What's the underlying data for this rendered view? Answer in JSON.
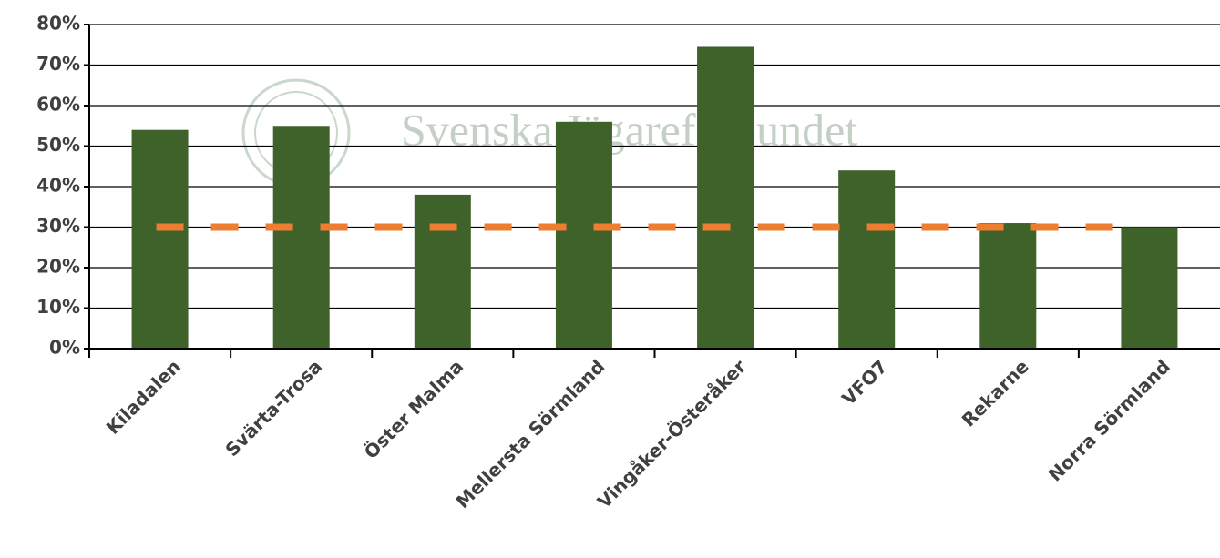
{
  "chart_data": {
    "type": "bar",
    "watermark": "Svenska Jägareförbundet",
    "categories": [
      "Kiladalen",
      "Svärta-Trosa",
      "Öster Malma",
      "Mellersta Sörmland",
      "Vingåker-Österåker",
      "VFO7",
      "Rekarne",
      "Norra Sörmland"
    ],
    "values": [
      54,
      55,
      38,
      56,
      74.5,
      44,
      31,
      30
    ],
    "color": "#3f612a",
    "reference_line": {
      "value": 30,
      "color": "#ed7d31"
    },
    "ylim": [
      0,
      80
    ],
    "yticks": [
      {
        "value": 0,
        "label": "0%"
      },
      {
        "value": 10,
        "label": "10%"
      },
      {
        "value": 20,
        "label": "20%"
      },
      {
        "value": 30,
        "label": "30%"
      },
      {
        "value": 40,
        "label": "40%"
      },
      {
        "value": 50,
        "label": "50%"
      },
      {
        "value": 60,
        "label": "60%"
      },
      {
        "value": 70,
        "label": "70%"
      },
      {
        "value": 80,
        "label": "80%"
      }
    ],
    "grid": true
  }
}
